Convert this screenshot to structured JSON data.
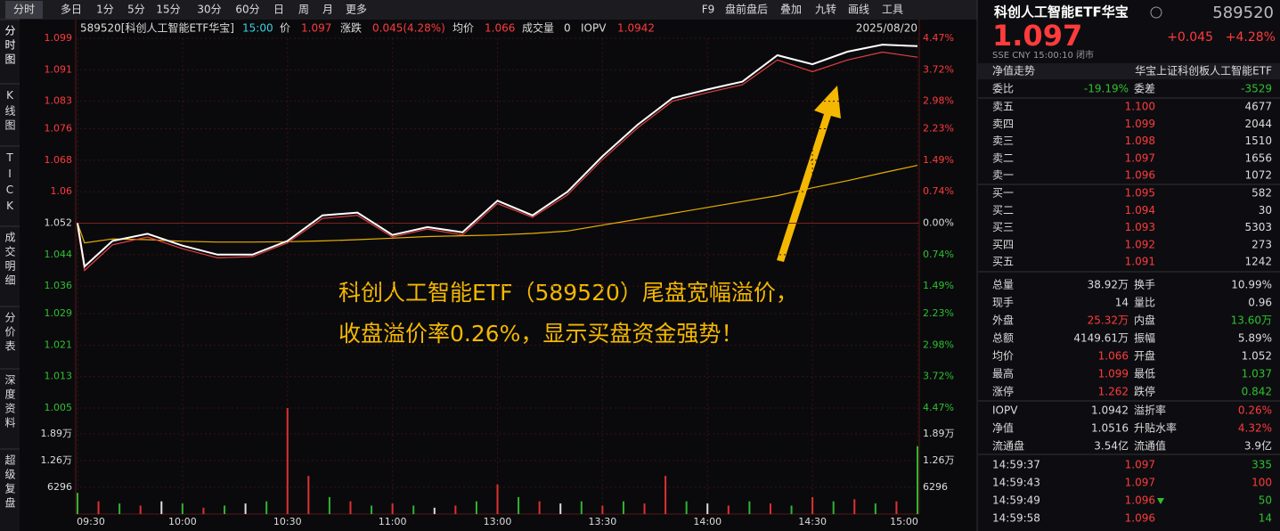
{
  "toolbar": {
    "tabs": [
      "分时",
      "多日",
      "1分",
      "5分",
      "15分",
      "30分",
      "60分",
      "日",
      "周",
      "月",
      "更多"
    ],
    "tools": [
      "F9",
      "盘前盘后",
      "叠加",
      "九转",
      "画线",
      "工具"
    ]
  },
  "sidebar": [
    "分时图",
    "K线图",
    "TICK",
    "成交明细",
    "分价表",
    "深度资料",
    "超级复盘"
  ],
  "info": {
    "symbol": "589520[科创人工智能ETF华宝]",
    "time": "15:00",
    "price_label": "价",
    "price": "1.097",
    "change_label": "涨跌",
    "change": "0.045(4.28%)",
    "avg_label": "均价",
    "avg": "1.066",
    "vol_label": "成交量",
    "vol": "0",
    "iopv_label": "IOPV",
    "iopv": "1.0942",
    "date": "2025/08/20"
  },
  "annotation": [
    "科创人工智能ETF（589520）尾盘宽幅溢价，",
    "收盘溢价率0.26%，显示买盘资金强势！"
  ],
  "chart_data": {
    "type": "line",
    "x": [
      0,
      2,
      10,
      20,
      30,
      40,
      50,
      60,
      70,
      80,
      90,
      100,
      110,
      120,
      130,
      140,
      150,
      160,
      170,
      180,
      190,
      200,
      210,
      220,
      230,
      240
    ],
    "xlim": [
      0,
      240
    ],
    "xticks": [
      {
        "value": 0,
        "label": "09:30"
      },
      {
        "value": 30,
        "label": "10:00"
      },
      {
        "value": 60,
        "label": "10:30"
      },
      {
        "value": 90,
        "label": "11:00"
      },
      {
        "value": 120,
        "label": "13:00"
      },
      {
        "value": 150,
        "label": "13:30"
      },
      {
        "value": 180,
        "label": "14:00"
      },
      {
        "value": 210,
        "label": "14:30"
      },
      {
        "value": 240,
        "label": "15:00"
      }
    ],
    "ylim": [
      1.005,
      1.099
    ],
    "yticks": [
      1.099,
      1.091,
      1.083,
      1.076,
      1.068,
      1.06,
      1.052,
      1.044,
      1.036,
      1.029,
      1.021,
      1.013,
      1.005
    ],
    "y2ticks": [
      "4.47%",
      "3.72%",
      "2.98%",
      "2.23%",
      "1.49%",
      "0.74%",
      "0.00%",
      "0.74%",
      "1.49%",
      "2.23%",
      "2.98%",
      "3.72%",
      "4.47%"
    ],
    "grid": true,
    "series": [
      {
        "color": "#ffffff",
        "values": [
          1.052,
          1.041,
          1.0475,
          1.0493,
          1.0463,
          1.044,
          1.044,
          1.0475,
          1.054,
          1.0547,
          1.049,
          1.051,
          1.0497,
          1.0577,
          1.054,
          1.06,
          1.069,
          1.077,
          1.0838,
          1.086,
          1.088,
          1.0947,
          1.0924,
          1.0956,
          1.0974,
          1.097
        ]
      },
      {
        "color": "#e04040",
        "values": [
          1.051,
          1.04,
          1.0465,
          1.0485,
          1.0455,
          1.0432,
          1.0435,
          1.047,
          1.0532,
          1.054,
          1.0485,
          1.0505,
          1.049,
          1.057,
          1.0535,
          1.0592,
          1.0682,
          1.0762,
          1.083,
          1.0852,
          1.0872,
          1.0935,
          1.0905,
          1.0935,
          1.0955,
          1.0942
        ]
      },
      {
        "color": "#e8b000",
        "values": [
          1.052,
          1.047,
          1.048,
          1.0478,
          1.0474,
          1.0472,
          1.0472,
          1.0473,
          1.0475,
          1.0478,
          1.0482,
          1.0486,
          1.0488,
          1.049,
          1.0494,
          1.05,
          1.0515,
          1.053,
          1.0545,
          1.056,
          1.0575,
          1.059,
          1.061,
          1.0628,
          1.0648,
          1.0667
        ]
      }
    ],
    "volume": {
      "x": [
        0,
        6,
        12,
        18,
        24,
        30,
        36,
        42,
        48,
        54,
        60,
        66,
        72,
        78,
        84,
        90,
        96,
        102,
        108,
        114,
        120,
        126,
        132,
        138,
        144,
        150,
        156,
        162,
        168,
        174,
        180,
        186,
        192,
        198,
        204,
        210,
        216,
        222,
        228,
        234,
        240
      ],
      "values": [
        5000,
        3000,
        2500,
        2000,
        3000,
        2500,
        1500,
        2000,
        2500,
        3000,
        25000,
        9000,
        4000,
        3000,
        2000,
        2500,
        2000,
        1500,
        2000,
        3000,
        7000,
        4000,
        3000,
        2500,
        3000,
        2000,
        3000,
        2500,
        9000,
        3000,
        2500,
        2000,
        3000,
        2500,
        2000,
        4000,
        3000,
        3500,
        2500,
        3000,
        16000
      ],
      "colors": [
        "#2fb52f",
        "#e03030",
        "#2fb52f",
        "#e03030",
        "#dddddd",
        "#2fb52f",
        "#e03030",
        "#2fb52f",
        "#dddddd",
        "#2fb52f",
        "#e03030",
        "#e03030",
        "#2fb52f",
        "#e03030",
        "#2fb52f",
        "#e03030",
        "#2fb52f",
        "#dddddd",
        "#e03030",
        "#2fb52f",
        "#e03030",
        "#2fb52f",
        "#e03030",
        "#dddddd",
        "#2fb52f",
        "#e03030",
        "#2fb52f",
        "#e03030",
        "#e03030",
        "#2fb52f",
        "#dddddd",
        "#e03030",
        "#2fb52f",
        "#e03030",
        "#2fb52f",
        "#e03030",
        "#2fb52f",
        "#e03030",
        "#2fb52f",
        "#e03030",
        "#2fb52f"
      ],
      "ylim": [
        0,
        25000
      ],
      "yticks": [
        {
          "value": 18900,
          "label": "1.89万"
        },
        {
          "value": 12600,
          "label": "1.26万"
        },
        {
          "value": 6296,
          "label": "6296"
        }
      ]
    }
  },
  "quote": {
    "name": "科创人工智能ETF华宝",
    "code": "589520",
    "price": "1.097",
    "change": "+0.045",
    "pct": "+4.28%",
    "meta": "SSE  CNY  15:00:10  闭市",
    "nav_tab": "净值走势",
    "fund": "华宝上证科创板人工智能ETF",
    "ratio": [
      {
        "label": "委比",
        "value": "-19.19%",
        "tone": "down"
      },
      {
        "label": "委差",
        "value": "-3529",
        "tone": "down"
      }
    ]
  },
  "book": [
    {
      "label": "卖五",
      "price": "1.100",
      "volume": "4677"
    },
    {
      "label": "卖四",
      "price": "1.099",
      "volume": "2044"
    },
    {
      "label": "卖三",
      "price": "1.098",
      "volume": "1510"
    },
    {
      "label": "卖二",
      "price": "1.097",
      "volume": "1656"
    },
    {
      "label": "卖一",
      "price": "1.096",
      "volume": "1072"
    },
    {
      "label": "买一",
      "price": "1.095",
      "volume": "582"
    },
    {
      "label": "买二",
      "price": "1.094",
      "volume": "30"
    },
    {
      "label": "买三",
      "price": "1.093",
      "volume": "5303"
    },
    {
      "label": "买四",
      "price": "1.092",
      "volume": "273"
    },
    {
      "label": "买五",
      "price": "1.091",
      "volume": "1242"
    }
  ],
  "stats": [
    [
      {
        "label": "总量",
        "value": "38.92万",
        "tone": "flat"
      },
      {
        "label": "换手",
        "value": "10.99%",
        "tone": "flat"
      }
    ],
    [
      {
        "label": "现手",
        "value": "14",
        "tone": "flat"
      },
      {
        "label": "量比",
        "value": "0.96",
        "tone": "flat"
      }
    ],
    [
      {
        "label": "外盘",
        "value": "25.32万",
        "tone": "up"
      },
      {
        "label": "内盘",
        "value": "13.60万",
        "tone": "down"
      }
    ],
    [
      {
        "label": "总额",
        "value": "4149.61万",
        "tone": "flat"
      },
      {
        "label": "振幅",
        "value": "5.89%",
        "tone": "flat"
      }
    ],
    [
      {
        "label": "均价",
        "value": "1.066",
        "tone": "up"
      },
      {
        "label": "开盘",
        "value": "1.052",
        "tone": "flat"
      }
    ],
    [
      {
        "label": "最高",
        "value": "1.099",
        "tone": "up"
      },
      {
        "label": "最低",
        "value": "1.037",
        "tone": "down"
      }
    ],
    [
      {
        "label": "涨停",
        "value": "1.262",
        "tone": "up"
      },
      {
        "label": "跌停",
        "value": "0.842",
        "tone": "down"
      }
    ]
  ],
  "iopv_stats": [
    [
      {
        "label": "IOPV",
        "value": "1.0942",
        "tone": "flat"
      },
      {
        "label": "溢折率",
        "value": "0.26%",
        "tone": "up"
      }
    ],
    [
      {
        "label": "净值",
        "value": "1.0516",
        "tone": "flat"
      },
      {
        "label": "升贴水率",
        "value": "4.32%",
        "tone": "up"
      }
    ],
    [
      {
        "label": "流通盘",
        "value": "3.54亿",
        "tone": "flat"
      },
      {
        "label": "流通值",
        "value": "3.9亿",
        "tone": "flat"
      }
    ]
  ],
  "trades": [
    {
      "time": "14:59:37",
      "price": "1.097",
      "volume": "335",
      "tone": "down"
    },
    {
      "time": "14:59:43",
      "price": "1.097",
      "volume": "100",
      "tone": "up"
    },
    {
      "time": "14:59:49",
      "price": "1.096",
      "volume": "50",
      "tone": "down"
    },
    {
      "time": "14:59:58",
      "price": "1.096",
      "volume": "14",
      "tone": "down"
    }
  ]
}
